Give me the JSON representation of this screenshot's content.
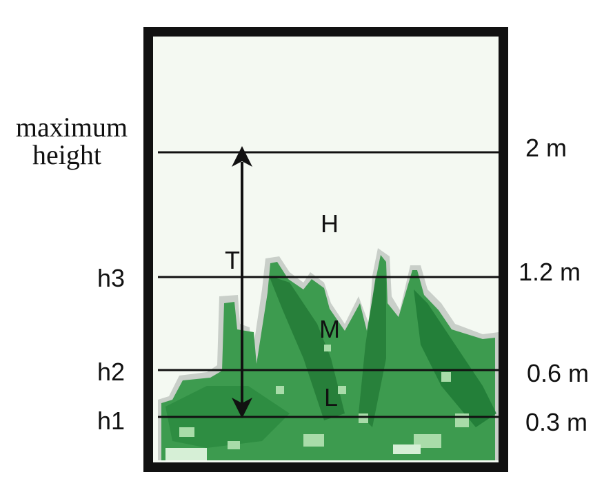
{
  "left_labels": {
    "max_line1": "maximum",
    "max_line2": "height",
    "h3": "h3",
    "h2": "h2",
    "h1": "h1"
  },
  "right_labels": {
    "top": "2 m",
    "h3": "1.2 m",
    "h2": "0.6 m",
    "h1": "0.3 m"
  },
  "zones": {
    "high": "H",
    "medium": "M",
    "low": "L",
    "total": "T"
  },
  "colors": {
    "frame": "#111111",
    "background": "#f4f9f2",
    "vegetation_dark": "#1f7a35",
    "vegetation_mid": "#3d9b4f",
    "vegetation_light": "#8fcf8f"
  }
}
